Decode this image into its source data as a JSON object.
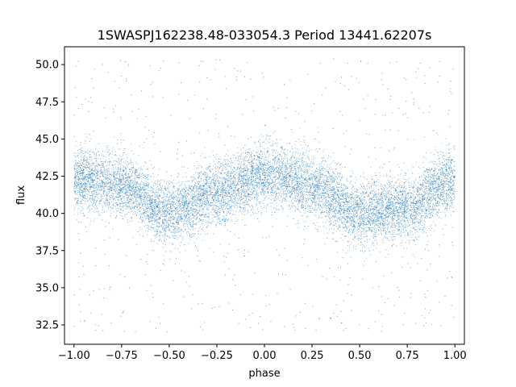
{
  "chart_data": {
    "type": "scatter",
    "title": "1SWASPJ162238.48-033054.3 Period 13441.62207s",
    "xlabel": "phase",
    "ylabel": "flux",
    "xlim": [
      -1.05,
      1.05
    ],
    "ylim": [
      31.2,
      51.2
    ],
    "x_ticks": [
      -1.0,
      -0.75,
      -0.5,
      -0.25,
      0.0,
      0.25,
      0.5,
      0.75,
      1.0
    ],
    "x_tick_labels": [
      "−1.00",
      "−0.75",
      "−0.50",
      "−0.25",
      "0.00",
      "0.25",
      "0.50",
      "0.75",
      "1.00"
    ],
    "y_ticks": [
      32.5,
      35.0,
      37.5,
      40.0,
      42.5,
      45.0,
      47.5,
      50.0
    ],
    "y_tick_labels": [
      "32.5",
      "35.0",
      "37.5",
      "40.0",
      "42.5",
      "45.0",
      "47.5",
      "50.0"
    ],
    "series_color": "#1f77b4",
    "grid": false,
    "legend": "none",
    "trend": {
      "description": "folded light curve, two cycles over phase -1 to 1",
      "phase": [
        -1.0,
        -0.75,
        -0.5,
        -0.25,
        0.0,
        0.25,
        0.5,
        0.75,
        1.0
      ],
      "mean_flux": [
        42.3,
        41.9,
        40.0,
        41.3,
        42.6,
        41.9,
        40.0,
        40.4,
        42.3
      ],
      "band_half_width": 2.3,
      "outlier_range": [
        32.0,
        50.4
      ]
    }
  }
}
